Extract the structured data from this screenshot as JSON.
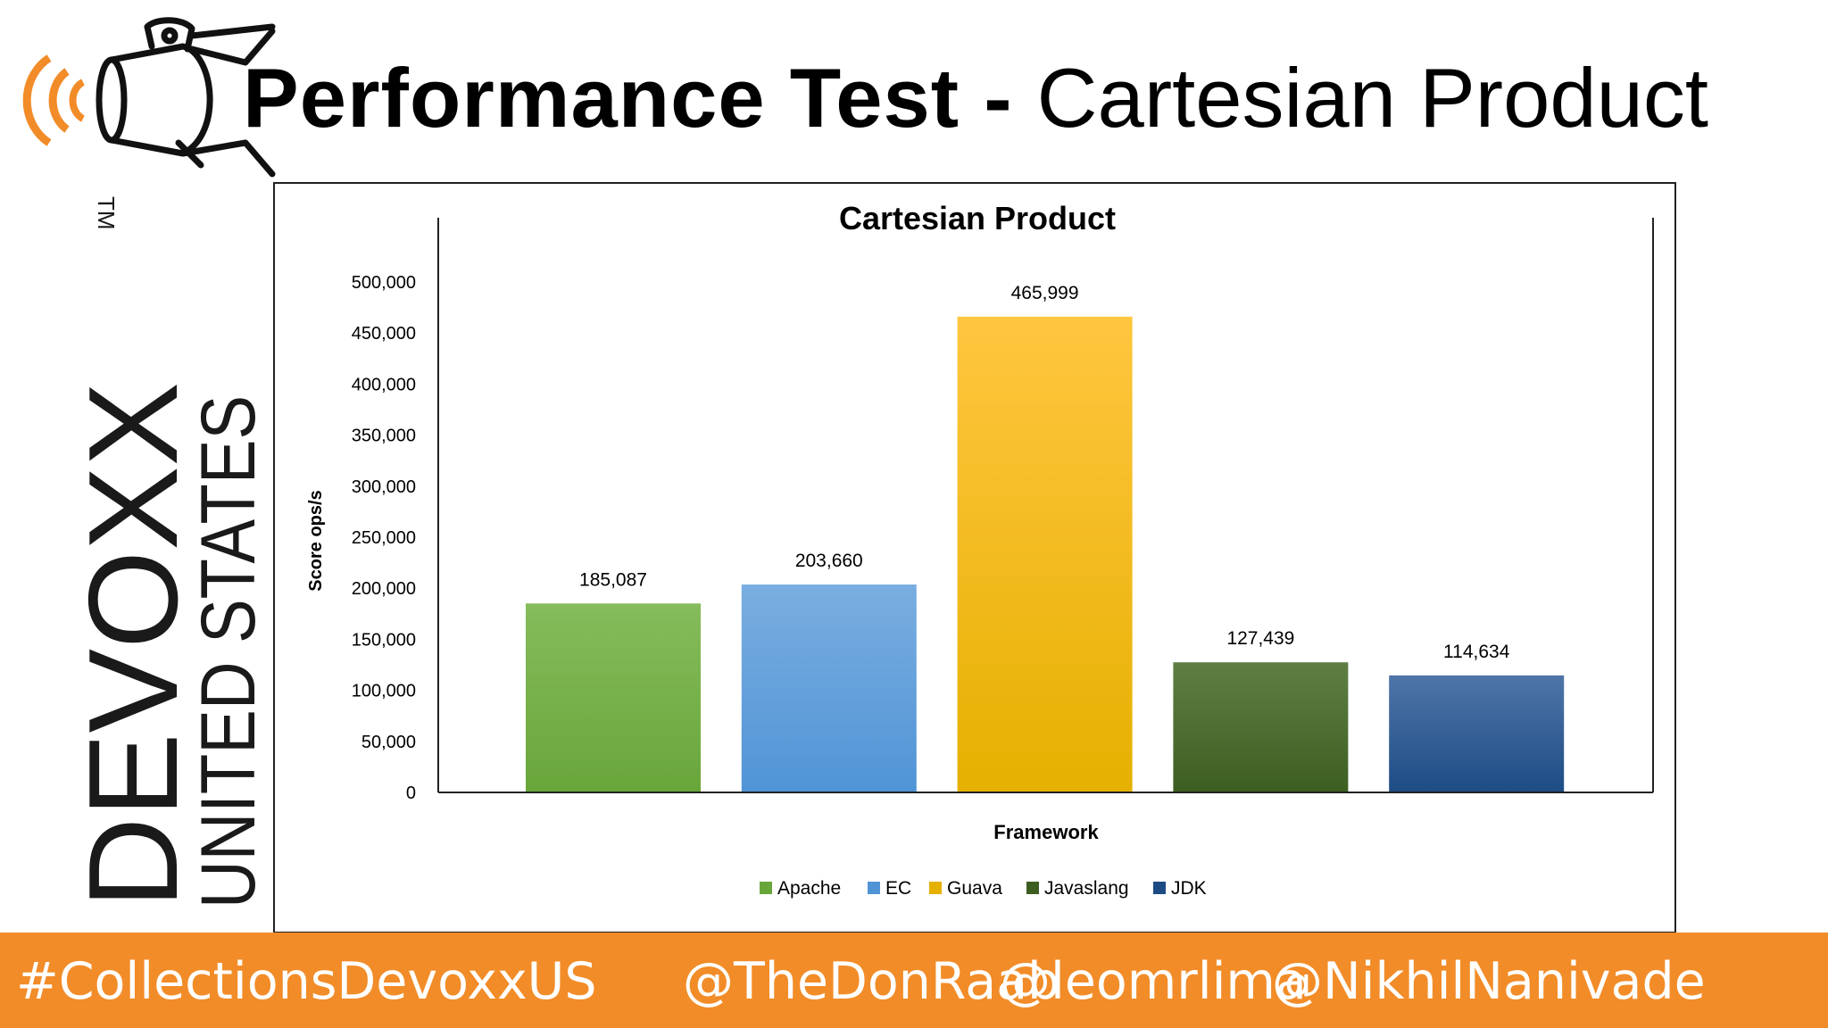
{
  "slide": {
    "title_bold": "Performance Test",
    "title_sep": " - ",
    "title_rest": "Cartesian Product"
  },
  "branding": {
    "wordmark": "DEVOXX",
    "trademark": "TM",
    "region": "UNITED STATES",
    "colors": {
      "accent": "#f28c28",
      "dark": "#1a1a1a"
    }
  },
  "footer": {
    "hashtag": "#CollectionsDevoxxUS",
    "handles": [
      "@TheDonRaab",
      "@leomrlima",
      "@NikhilNanivade"
    ],
    "background": "#f28c28"
  },
  "chart_data": {
    "type": "bar",
    "title": "Cartesian Product",
    "xlabel": "Framework",
    "ylabel": "Score ops/s",
    "ylim": [
      0,
      500000
    ],
    "yticks": [
      0,
      50000,
      100000,
      150000,
      200000,
      250000,
      300000,
      350000,
      400000,
      450000,
      500000
    ],
    "ytick_labels": [
      "0",
      "50,000",
      "100,000",
      "150,000",
      "200,000",
      "250,000",
      "300,000",
      "350,000",
      "400,000",
      "450,000",
      "500,000"
    ],
    "grid": false,
    "legend": "bottom",
    "categories": [
      "Apache",
      "EC",
      "Guava",
      "Javaslang",
      "JDK"
    ],
    "values": [
      185087,
      203660,
      465999,
      127439,
      114634
    ],
    "data_labels": [
      "185,087",
      "203,660",
      "465,999",
      "127,439",
      "114,634"
    ],
    "colors": [
      [
        "#86bc5c",
        "#68a63a"
      ],
      [
        "#7aaee0",
        "#5094d6"
      ],
      [
        "#ffc63f",
        "#e6b000"
      ],
      [
        "#5f7e45",
        "#3d5e21"
      ],
      [
        "#4f75a8",
        "#1d4c85"
      ]
    ]
  }
}
